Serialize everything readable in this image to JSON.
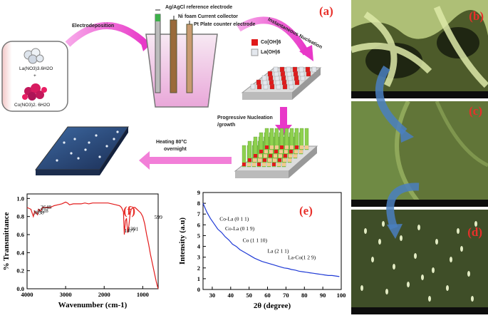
{
  "panel_labels": {
    "a": "(a)",
    "b": "(b)",
    "c": "(c)",
    "d": "(d)",
    "e": "(e)",
    "f": "(f)"
  },
  "schematic": {
    "electrodeposition": "Electrodeposition",
    "ref_electrode": "Ag/AgCl reference electrode",
    "current_collector": "Ni foam Current collector",
    "counter_electrode": "Pt Plate counter electrode",
    "instant_nucleation": "Instantaneous Nucleation",
    "legend_co": "Co[OH]6",
    "legend_la": "La(OH)6",
    "progressive": "Progressive Nucleation",
    "growth": "/growth",
    "heating": "Heating 80°C",
    "overnight": "overnight",
    "precursor_la": "La(NO3)3.6H2O",
    "plus": "+",
    "precursor_co": "Co(NO3)2. 6H2O"
  },
  "chart_data": [
    {
      "type": "line",
      "panel": "f",
      "xlabel": "Wavenumber (cm-1)",
      "ylabel": "% Transmittance",
      "xlim": [
        4000,
        600
      ],
      "ylim": [
        0.0,
        1.05
      ],
      "x_ticks": [
        "4000",
        "3000",
        "2000",
        "1000"
      ],
      "y_ticks": [
        "0.0",
        "0.2",
        "0.4",
        "0.6",
        "0.8",
        "1.0"
      ],
      "grid": false,
      "x": [
        4000,
        3900,
        3838,
        3800,
        3728,
        3700,
        3648,
        3600,
        3500,
        3400,
        3300,
        3200,
        3100,
        3000,
        2950,
        2900,
        2800,
        2700,
        2600,
        2500,
        2400,
        2300,
        2200,
        2100,
        2000,
        1900,
        1800,
        1700,
        1600,
        1550,
        1500,
        1477,
        1450,
        1420,
        1391,
        1360,
        1330,
        1300,
        1250,
        1200,
        1150,
        1100,
        1050,
        1000,
        950,
        900,
        850,
        800,
        750,
        700,
        650,
        620,
        600
      ],
      "y": [
        0.9,
        0.88,
        0.8,
        0.86,
        0.82,
        0.88,
        0.86,
        0.9,
        0.9,
        0.9,
        0.92,
        0.93,
        0.94,
        0.96,
        0.95,
        0.93,
        0.94,
        0.94,
        0.94,
        0.95,
        0.94,
        0.95,
        0.95,
        0.95,
        0.95,
        0.95,
        0.94,
        0.93,
        0.92,
        0.9,
        0.85,
        0.6,
        0.75,
        0.78,
        0.62,
        0.7,
        0.82,
        0.88,
        0.9,
        0.9,
        0.88,
        0.86,
        0.84,
        0.8,
        0.72,
        0.6,
        0.5,
        0.38,
        0.28,
        0.18,
        0.08,
        0.03,
        0.0
      ],
      "annotations": [
        {
          "label": "3648",
          "x": 3648,
          "y": 0.86
        },
        {
          "label": "3728",
          "x": 3728,
          "y": 0.82
        },
        {
          "label": "3838",
          "x": 3838,
          "y": 0.8
        },
        {
          "label": "1477",
          "x": 1477,
          "y": 0.6
        },
        {
          "label": "1391",
          "x": 1391,
          "y": 0.62
        },
        {
          "label": "599",
          "x": 700,
          "y": 0.75
        }
      ]
    },
    {
      "type": "line",
      "panel": "e",
      "xlabel": "2θ (degree)",
      "ylabel": "Intensity (a.u)",
      "xlim": [
        25,
        100
      ],
      "ylim": [
        0,
        9
      ],
      "x_ticks": [
        "30",
        "40",
        "50",
        "60",
        "70",
        "80",
        "90",
        "100"
      ],
      "y_ticks": [
        "0",
        "1",
        "2",
        "3",
        "4",
        "5",
        "6",
        "7",
        "8",
        "9"
      ],
      "grid": false,
      "x": [
        25,
        27,
        29,
        31,
        33,
        35,
        37,
        39,
        41,
        43,
        45,
        47,
        49,
        51,
        53,
        55,
        57,
        59,
        61,
        63,
        65,
        67,
        69,
        71,
        73,
        75,
        77,
        79,
        81,
        83,
        85,
        87,
        89,
        91,
        93,
        95,
        97,
        99
      ],
      "y": [
        8.0,
        7.2,
        6.6,
        6.1,
        5.6,
        5.3,
        4.9,
        4.6,
        4.2,
        4.0,
        3.7,
        3.5,
        3.3,
        3.1,
        2.9,
        2.75,
        2.6,
        2.5,
        2.4,
        2.3,
        2.2,
        2.1,
        2.0,
        1.95,
        1.85,
        1.8,
        1.7,
        1.65,
        1.6,
        1.55,
        1.5,
        1.45,
        1.4,
        1.35,
        1.3,
        1.3,
        1.25,
        1.2
      ],
      "annotations": [
        {
          "label": "Co-La (0 1 1)",
          "x": 34,
          "y": 6.2
        },
        {
          "label": "Co-La (0 1 9)",
          "x": 37,
          "y": 5.3
        },
        {
          "label": "Co (1 1 10)",
          "x": 46.5,
          "y": 4.2
        },
        {
          "label": "La (2 1 1)",
          "x": 60,
          "y": 3.2
        },
        {
          "label": "La-Co(1 2 9)",
          "x": 71,
          "y": 2.6
        }
      ]
    }
  ]
}
